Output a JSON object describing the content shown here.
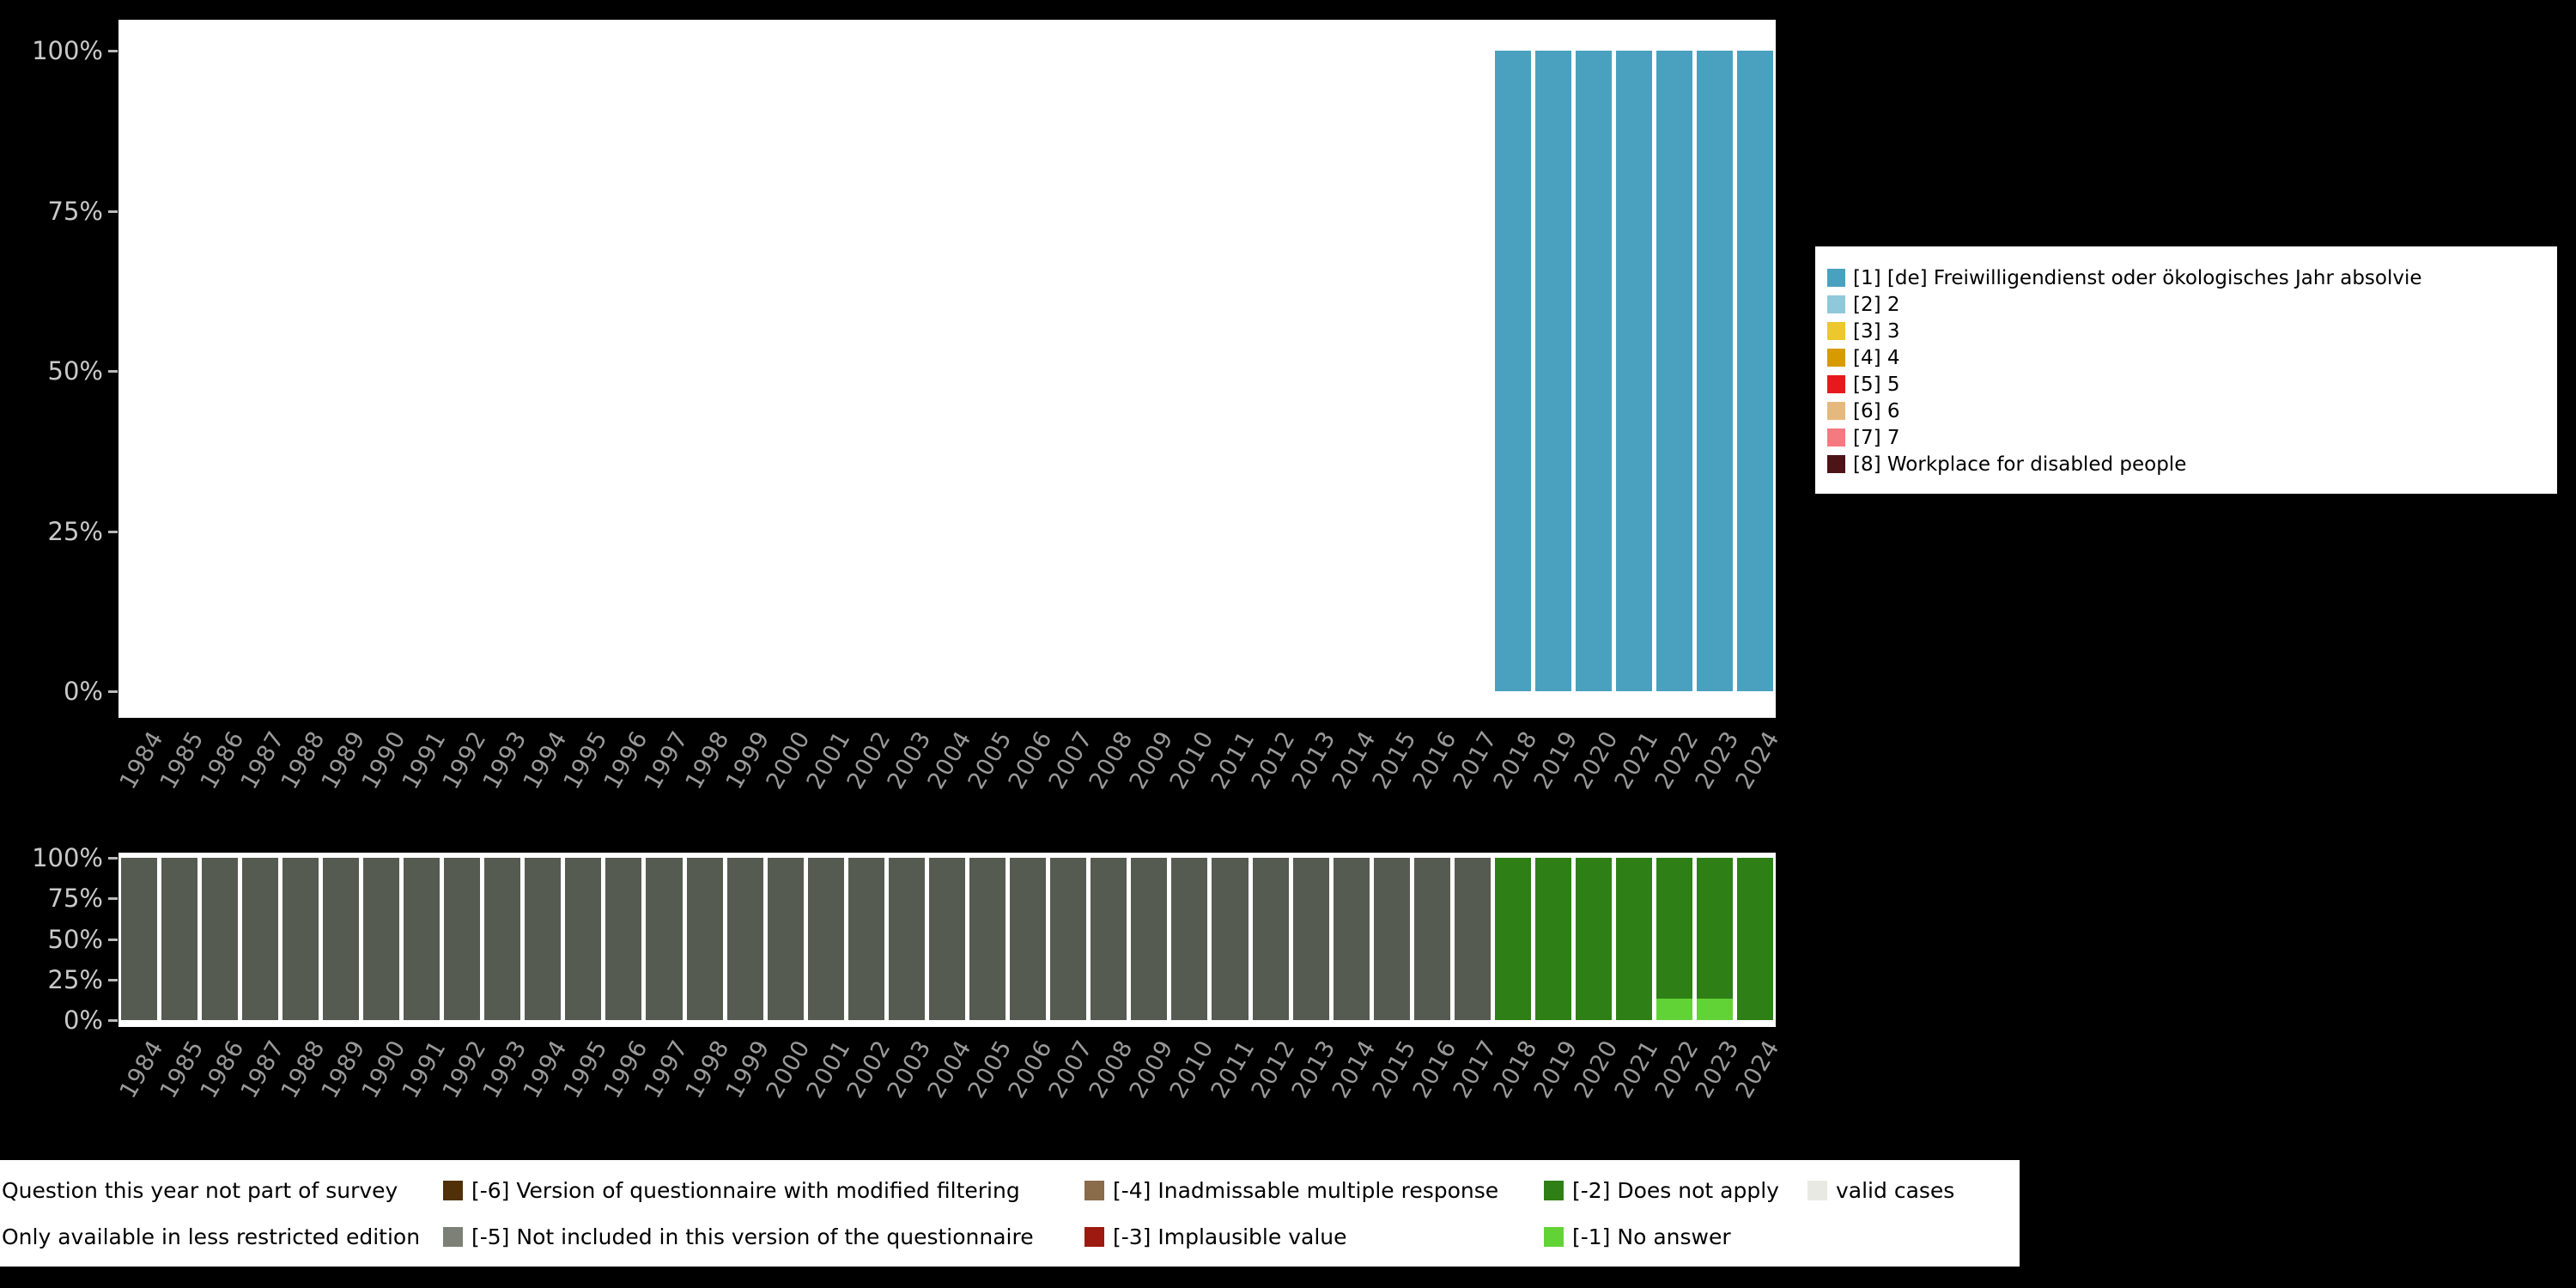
{
  "chart_data": [
    {
      "id": "frequencies",
      "type": "bar",
      "stacked": true,
      "title": "",
      "xlabel": "",
      "ylabel": "",
      "ylim": [
        0,
        100
      ],
      "grid": false,
      "legend_position": "right",
      "ytick_labels": [
        "0%",
        "25%",
        "50%",
        "75%",
        "100%"
      ],
      "x": [
        "1984",
        "1985",
        "1986",
        "1987",
        "1988",
        "1989",
        "1990",
        "1991",
        "1992",
        "1993",
        "1994",
        "1995",
        "1996",
        "1997",
        "1998",
        "1999",
        "2000",
        "2001",
        "2002",
        "2003",
        "2004",
        "2005",
        "2006",
        "2007",
        "2008",
        "2009",
        "2010",
        "2011",
        "2012",
        "2013",
        "2014",
        "2015",
        "2016",
        "2017",
        "2018",
        "2019",
        "2020",
        "2021",
        "2022",
        "2023",
        "2024"
      ],
      "series": [
        {
          "name": "[1] [de] Freiwilligendienst oder ökologisches Jahr absolvie",
          "color": "#4aa1bf",
          "values": [
            0,
            0,
            0,
            0,
            0,
            0,
            0,
            0,
            0,
            0,
            0,
            0,
            0,
            0,
            0,
            0,
            0,
            0,
            0,
            0,
            0,
            0,
            0,
            0,
            0,
            0,
            0,
            0,
            0,
            0,
            0,
            0,
            0,
            0,
            100,
            100,
            100,
            100,
            100,
            100,
            100
          ]
        }
      ]
    },
    {
      "id": "missings",
      "type": "bar",
      "stacked": true,
      "title": "",
      "xlabel": "",
      "ylabel": "",
      "ylim": [
        0,
        100
      ],
      "grid": false,
      "ytick_labels": [
        "0%",
        "25%",
        "50%",
        "75%",
        "100%"
      ],
      "x": [
        "1984",
        "1985",
        "1986",
        "1987",
        "1988",
        "1989",
        "1990",
        "1991",
        "1992",
        "1993",
        "1994",
        "1995",
        "1996",
        "1997",
        "1998",
        "1999",
        "2000",
        "2001",
        "2002",
        "2003",
        "2004",
        "2005",
        "2006",
        "2007",
        "2008",
        "2009",
        "2010",
        "2011",
        "2012",
        "2013",
        "2014",
        "2015",
        "2016",
        "2017",
        "2018",
        "2019",
        "2020",
        "2021",
        "2022",
        "2023",
        "2024"
      ],
      "series": [
        {
          "name": "[-1] No answer",
          "color": "#62d336",
          "values": [
            0,
            0,
            0,
            0,
            0,
            0,
            0,
            0,
            0,
            0,
            0,
            0,
            0,
            0,
            0,
            0,
            0,
            0,
            0,
            0,
            0,
            0,
            0,
            0,
            0,
            0,
            0,
            0,
            0,
            0,
            0,
            0,
            0,
            0,
            0,
            0,
            0,
            0,
            13,
            13,
            0
          ]
        },
        {
          "name": "[-2] Does not apply",
          "color": "#2e8016",
          "values": [
            0,
            0,
            0,
            0,
            0,
            0,
            0,
            0,
            0,
            0,
            0,
            0,
            0,
            0,
            0,
            0,
            0,
            0,
            0,
            0,
            0,
            0,
            0,
            0,
            0,
            0,
            0,
            0,
            0,
            0,
            0,
            0,
            0,
            0,
            100,
            100,
            100,
            100,
            87,
            87,
            100
          ]
        },
        {
          "name": "Question this year not part of survey",
          "color": "#565b51",
          "values": [
            100,
            100,
            100,
            100,
            100,
            100,
            100,
            100,
            100,
            100,
            100,
            100,
            100,
            100,
            100,
            100,
            100,
            100,
            100,
            100,
            100,
            100,
            100,
            100,
            100,
            100,
            100,
            100,
            100,
            100,
            100,
            100,
            100,
            100,
            0,
            0,
            0,
            0,
            0,
            0,
            0
          ]
        }
      ]
    }
  ],
  "top_legend": {
    "items": [
      {
        "label": "[1] [de] Freiwilligendienst oder ökologisches Jahr absolvie",
        "color": "#4aa1bf"
      },
      {
        "label": "[2] 2",
        "color": "#8fc8da"
      },
      {
        "label": "[3] 3",
        "color": "#edc72e"
      },
      {
        "label": "[4] 4",
        "color": "#d79b00"
      },
      {
        "label": "[5] 5",
        "color": "#e8191c"
      },
      {
        "label": "[6] 6",
        "color": "#e5b97e"
      },
      {
        "label": "[7] 7",
        "color": "#f57a80"
      },
      {
        "label": "[8] Workplace for disabled people",
        "color": "#4d1418"
      }
    ]
  },
  "bottom_legend": {
    "columns": [
      [
        {
          "label": "Question this year not part of survey",
          "color": null
        },
        {
          "label": "Only available in less restricted edition",
          "color": null
        }
      ],
      [
        {
          "label": "[-6] Version of questionnaire with modified filtering",
          "color": "#4f3009"
        },
        {
          "label": "[-5] Not included in this version of the questionnaire",
          "color": "#7d8076"
        }
      ],
      [
        {
          "label": "[-4] Inadmissable multiple response",
          "color": "#8a6b4a"
        },
        {
          "label": "[-3] Implausible value",
          "color": "#9c1a10"
        }
      ],
      [
        {
          "label": "[-2] Does not apply",
          "color": "#2e8016"
        },
        {
          "label": "[-1] No answer",
          "color": "#62d336"
        }
      ],
      [
        {
          "label": "valid cases",
          "color": "#e9e9e4"
        }
      ]
    ]
  },
  "colors": {
    "background": "#000000",
    "plot_background": "#ffffff",
    "x_axis_label": "#9a9a9a",
    "y_axis_label": "#c9c9c9"
  }
}
